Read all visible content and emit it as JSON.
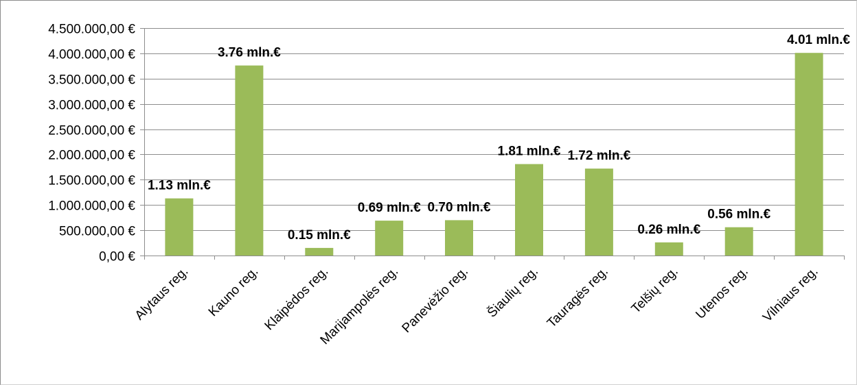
{
  "chart_data": {
    "type": "bar",
    "title": "",
    "xlabel": "",
    "ylabel": "",
    "categories": [
      "Alytaus reg.",
      "Kauno reg.",
      "Klaipėdos reg.",
      "Marijampolės reg.",
      "Panevėžio reg.",
      "Šiaulių reg.",
      "Tauragės reg.",
      "Telšių reg.",
      "Utenos reg.",
      "Vilniaus reg."
    ],
    "values": [
      1130000,
      3760000,
      150000,
      690000,
      700000,
      1810000,
      1720000,
      260000,
      560000,
      4010000
    ],
    "data_labels": [
      "1.13 mln.€",
      "3.76 mln.€",
      "0.15 mln.€",
      "0.69 mln.€",
      "0.70 mln.€",
      "1.81 mln.€",
      "1.72 mln.€",
      "0.26 mln.€",
      "0.56 mln.€",
      "4.01 mln.€"
    ],
    "ylim": [
      0,
      4500000
    ],
    "yticks": [
      0,
      500000,
      1000000,
      1500000,
      2000000,
      2500000,
      3000000,
      3500000,
      4000000,
      4500000
    ],
    "ytick_labels": [
      "0,00 €",
      "500.000,00 €",
      "1.000.000,00 €",
      "1.500.000,00 €",
      "2.000.000,00 €",
      "2.500.000,00 €",
      "3.000.000,00 €",
      "3.500.000,00 €",
      "4.000.000,00 €",
      "4.500.000,00 €"
    ],
    "grid": true,
    "legend": "none",
    "bar_color": "#9bbb59",
    "grid_color": "#8c8c8c"
  }
}
